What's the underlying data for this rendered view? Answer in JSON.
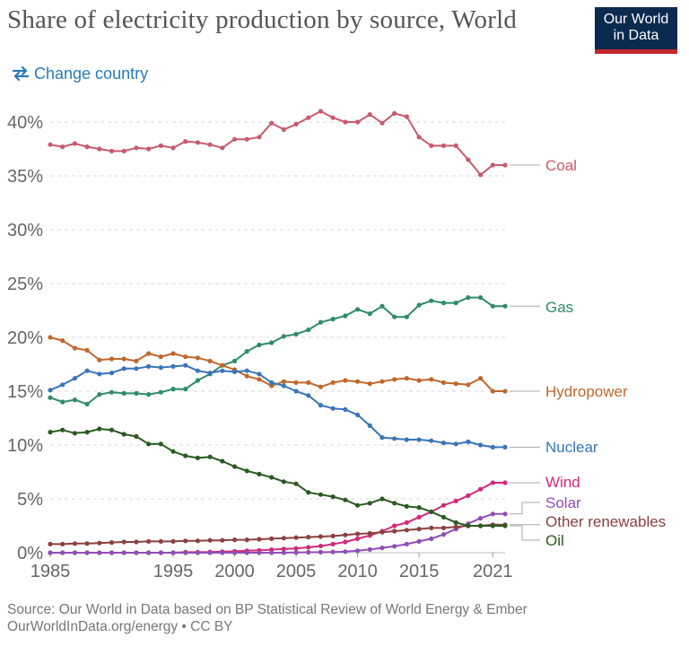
{
  "header": {
    "title": "Share of electricity production by source, World",
    "logo_line1": "Our World",
    "logo_line2": "in Data",
    "change_country_label": "Change country"
  },
  "footer": {
    "source": "Source: Our World in Data based on BP Statistical Review of World Energy & Ember",
    "link": "OurWorldInData.org/energy • CC BY"
  },
  "colors": {
    "coal": "#c85a6e",
    "gas": "#2e8b6b",
    "hydropower": "#c0672c",
    "nuclear": "#3a75b9",
    "wind": "#d22a7a",
    "solar": "#8f4fb5",
    "other_renewables": "#8c4040",
    "oil": "#2b5a22",
    "accent": "#2a7ab5",
    "logo_bg": "#0b2a4f",
    "logo_bar": "#c3272e"
  },
  "chart_data": {
    "type": "line",
    "title": "Share of electricity production by source, World",
    "xlabel": "",
    "ylabel": "",
    "x": [
      1985,
      1986,
      1987,
      1988,
      1989,
      1990,
      1991,
      1992,
      1993,
      1994,
      1995,
      1996,
      1997,
      1998,
      1999,
      2000,
      2001,
      2002,
      2003,
      2004,
      2005,
      2006,
      2007,
      2008,
      2009,
      2010,
      2011,
      2012,
      2013,
      2014,
      2015,
      2016,
      2017,
      2018,
      2019,
      2020,
      2021,
      2022
    ],
    "x_ticks": [
      1985,
      1995,
      2000,
      2005,
      2010,
      2015,
      2021
    ],
    "y_ticks": [
      0,
      5,
      10,
      15,
      20,
      25,
      30,
      35,
      40
    ],
    "y_tick_labels": [
      "0%",
      "5%",
      "10%",
      "15%",
      "20%",
      "25%",
      "30%",
      "35%",
      "40%"
    ],
    "ylim": [
      0,
      42
    ],
    "xlim": [
      1985,
      2022
    ],
    "grid": true,
    "legend": "right end labels",
    "series": [
      {
        "name": "Coal",
        "key": "coal",
        "values": [
          37.9,
          37.7,
          38.0,
          37.7,
          37.5,
          37.3,
          37.3,
          37.6,
          37.5,
          37.8,
          37.6,
          38.2,
          38.1,
          37.9,
          37.6,
          38.4,
          38.4,
          38.6,
          39.9,
          39.3,
          39.8,
          40.4,
          41.0,
          40.4,
          40.0,
          40.0,
          40.7,
          39.9,
          40.8,
          40.5,
          38.6,
          37.8,
          37.8,
          37.8,
          36.5,
          35.1,
          36.0,
          36.0
        ]
      },
      {
        "name": "Gas",
        "key": "gas",
        "values": [
          14.4,
          14.0,
          14.2,
          13.8,
          14.7,
          14.9,
          14.8,
          14.8,
          14.7,
          14.9,
          15.2,
          15.2,
          16.0,
          16.6,
          17.4,
          17.8,
          18.7,
          19.3,
          19.5,
          20.1,
          20.3,
          20.7,
          21.4,
          21.7,
          22.0,
          22.6,
          22.2,
          22.9,
          21.9,
          21.9,
          23.0,
          23.4,
          23.2,
          23.2,
          23.7,
          23.7,
          22.9,
          22.9
        ]
      },
      {
        "name": "Hydropower",
        "key": "hydropower",
        "values": [
          20.0,
          19.7,
          19.0,
          18.8,
          17.9,
          18.0,
          18.0,
          17.8,
          18.5,
          18.2,
          18.5,
          18.2,
          18.1,
          17.8,
          17.4,
          17.0,
          16.4,
          16.1,
          15.5,
          15.9,
          15.8,
          15.8,
          15.4,
          15.8,
          16.0,
          15.9,
          15.7,
          15.9,
          16.1,
          16.2,
          16.0,
          16.1,
          15.8,
          15.7,
          15.6,
          16.2,
          15.0,
          15.0
        ]
      },
      {
        "name": "Nuclear",
        "key": "nuclear",
        "values": [
          15.1,
          15.6,
          16.2,
          16.9,
          16.6,
          16.7,
          17.1,
          17.1,
          17.3,
          17.2,
          17.3,
          17.4,
          16.9,
          16.7,
          16.9,
          16.8,
          16.9,
          16.6,
          15.8,
          15.5,
          15.0,
          14.6,
          13.7,
          13.4,
          13.3,
          12.8,
          11.8,
          10.7,
          10.6,
          10.5,
          10.5,
          10.4,
          10.2,
          10.1,
          10.3,
          10.0,
          9.8,
          9.8
        ]
      },
      {
        "name": "Wind",
        "key": "wind",
        "values": [
          0.0,
          0.0,
          0.0,
          0.0,
          0.0,
          0.0,
          0.0,
          0.0,
          0.0,
          0.0,
          0.0,
          0.05,
          0.05,
          0.07,
          0.1,
          0.13,
          0.18,
          0.22,
          0.28,
          0.35,
          0.4,
          0.5,
          0.62,
          0.8,
          1.0,
          1.3,
          1.6,
          2.0,
          2.5,
          2.8,
          3.3,
          3.8,
          4.4,
          4.8,
          5.3,
          5.9,
          6.5,
          6.5
        ]
      },
      {
        "name": "Solar",
        "key": "solar",
        "values": [
          0.0,
          0.0,
          0.0,
          0.0,
          0.0,
          0.0,
          0.0,
          0.0,
          0.0,
          0.0,
          0.0,
          0.0,
          0.0,
          0.0,
          0.0,
          0.0,
          0.0,
          0.0,
          0.0,
          0.0,
          0.02,
          0.04,
          0.05,
          0.07,
          0.1,
          0.18,
          0.3,
          0.45,
          0.6,
          0.8,
          1.05,
          1.3,
          1.7,
          2.2,
          2.7,
          3.2,
          3.6,
          3.6
        ]
      },
      {
        "name": "Other renewables",
        "key": "other_renewables",
        "values": [
          0.8,
          0.8,
          0.85,
          0.85,
          0.9,
          0.95,
          1.0,
          1.0,
          1.05,
          1.05,
          1.05,
          1.1,
          1.1,
          1.15,
          1.15,
          1.2,
          1.2,
          1.25,
          1.3,
          1.35,
          1.4,
          1.45,
          1.5,
          1.55,
          1.65,
          1.75,
          1.8,
          1.9,
          2.0,
          2.1,
          2.2,
          2.3,
          2.3,
          2.4,
          2.5,
          2.5,
          2.6,
          2.6
        ]
      },
      {
        "name": "Oil",
        "key": "oil",
        "values": [
          11.2,
          11.4,
          11.1,
          11.2,
          11.5,
          11.4,
          11.0,
          10.8,
          10.1,
          10.1,
          9.4,
          9.0,
          8.8,
          8.9,
          8.5,
          8.0,
          7.6,
          7.3,
          7.0,
          6.6,
          6.4,
          5.6,
          5.4,
          5.2,
          4.9,
          4.4,
          4.6,
          5.0,
          4.6,
          4.3,
          4.2,
          3.8,
          3.3,
          2.8,
          2.5,
          2.5,
          2.5,
          2.5
        ]
      }
    ]
  }
}
